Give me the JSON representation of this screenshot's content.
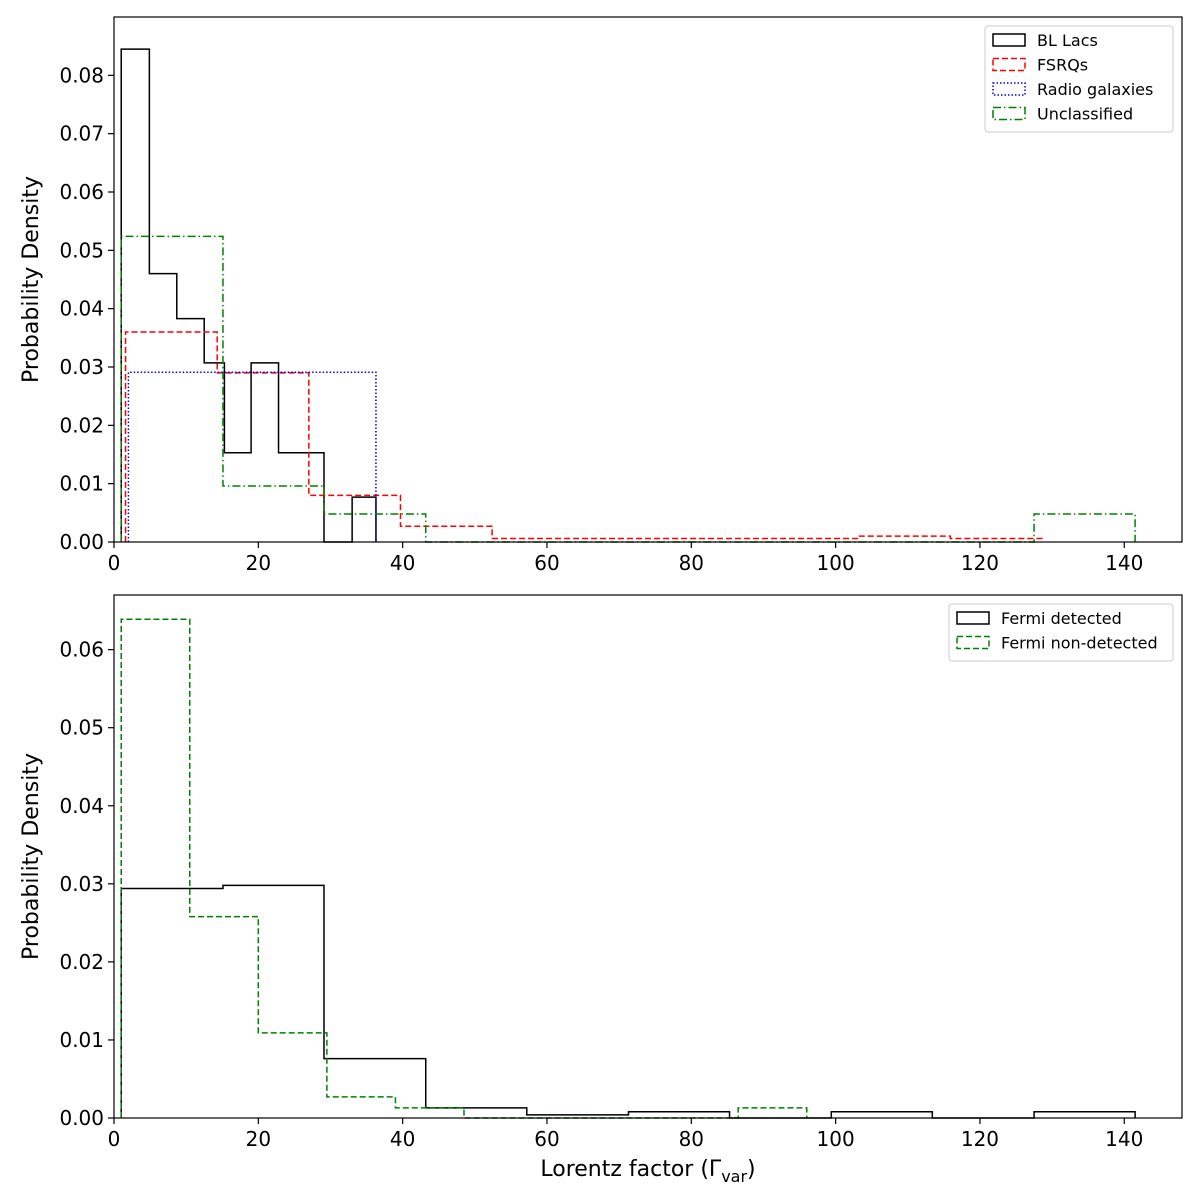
{
  "chart_data": [
    {
      "type": "histogram",
      "xlabel": "",
      "ylabel": "Probability Density",
      "xlim": [
        0,
        148
      ],
      "ylim": [
        0,
        0.09
      ],
      "xticks": [
        0,
        20,
        40,
        60,
        80,
        100,
        120,
        140
      ],
      "xtick_labels": [
        "0",
        "20",
        "40",
        "60",
        "80",
        "100",
        "120",
        "140"
      ],
      "yticks": [
        0,
        0.01,
        0.02,
        0.03,
        0.04,
        0.05,
        0.06,
        0.07,
        0.08
      ],
      "ytick_labels": [
        "0.00",
        "0.01",
        "0.02",
        "0.03",
        "0.04",
        "0.05",
        "0.06",
        "0.07",
        "0.08"
      ],
      "legend_position": "top-right",
      "series": [
        {
          "name": "BL Lacs",
          "color": "#000000",
          "style": "solid",
          "bin_edges": [
            1,
            4.9,
            8.7,
            12.5,
            15.3,
            19,
            22.8,
            26.7,
            29.1,
            33,
            36.3
          ],
          "values": [
            0.0845,
            0.046,
            0.0383,
            0.0307,
            0.0153,
            0.0307,
            0.0153,
            0.0153,
            0,
            0.0077
          ]
        },
        {
          "name": "FSRQs",
          "color": "#ff0000",
          "style": "dashed",
          "bin_edges": [
            1.6,
            14.3,
            27,
            39.7,
            52.4,
            65.1,
            77.8,
            90.5,
            103.2,
            115.9,
            128.6
          ],
          "values": [
            0.036,
            0.029,
            0.008,
            0.0027,
            0.0006,
            0.0006,
            0.0006,
            0.0006,
            0.001,
            0.0006
          ]
        },
        {
          "name": "Radio galaxies",
          "color": "#0000ff",
          "style": "dotted",
          "bin_edges": [
            2,
            36.3
          ],
          "values": [
            0.0291
          ]
        },
        {
          "name": "Unclassified",
          "color": "#008000",
          "style": "dashdot",
          "bin_edges": [
            1,
            15.1,
            29.1,
            43.2,
            57.2,
            71.3,
            85.3,
            99.4,
            113.4,
            127.5,
            141.5
          ],
          "values": [
            0.0524,
            0.0096,
            0.0048,
            0,
            0,
            0,
            0,
            0,
            0,
            0.0048
          ]
        }
      ]
    },
    {
      "type": "histogram",
      "xlabel": "Lorentz factor (Γ",
      "xlabel_sub": "var",
      "xlabel_end": ")",
      "ylabel": "Probability Density",
      "xlim": [
        0,
        148
      ],
      "ylim": [
        0,
        0.067
      ],
      "xticks": [
        0,
        20,
        40,
        60,
        80,
        100,
        120,
        140
      ],
      "xtick_labels": [
        "0",
        "20",
        "40",
        "60",
        "80",
        "100",
        "120",
        "140"
      ],
      "yticks": [
        0,
        0.01,
        0.02,
        0.03,
        0.04,
        0.05,
        0.06
      ],
      "ytick_labels": [
        "0.00",
        "0.01",
        "0.02",
        "0.03",
        "0.04",
        "0.05",
        "0.06"
      ],
      "legend_position": "top-right",
      "series": [
        {
          "name": "Fermi detected",
          "color": "#000000",
          "style": "solid",
          "bin_edges": [
            1,
            15.1,
            29.1,
            43.2,
            57.2,
            71.3,
            85.3,
            99.4,
            113.4,
            127.5,
            141.5
          ],
          "values": [
            0.0294,
            0.0298,
            0.0076,
            0.0013,
            0.0004,
            0.0008,
            0,
            0.0008,
            0,
            0.0008
          ]
        },
        {
          "name": "Fermi non-detected",
          "color": "#008000",
          "style": "dashed",
          "bin_edges": [
            1,
            10.5,
            20,
            29.5,
            39,
            48.5,
            58,
            67.5,
            77,
            86.5,
            96
          ],
          "values": [
            0.0639,
            0.0258,
            0.0109,
            0.0027,
            0.0013,
            0,
            0,
            0,
            0,
            0.0013
          ]
        }
      ]
    }
  ]
}
